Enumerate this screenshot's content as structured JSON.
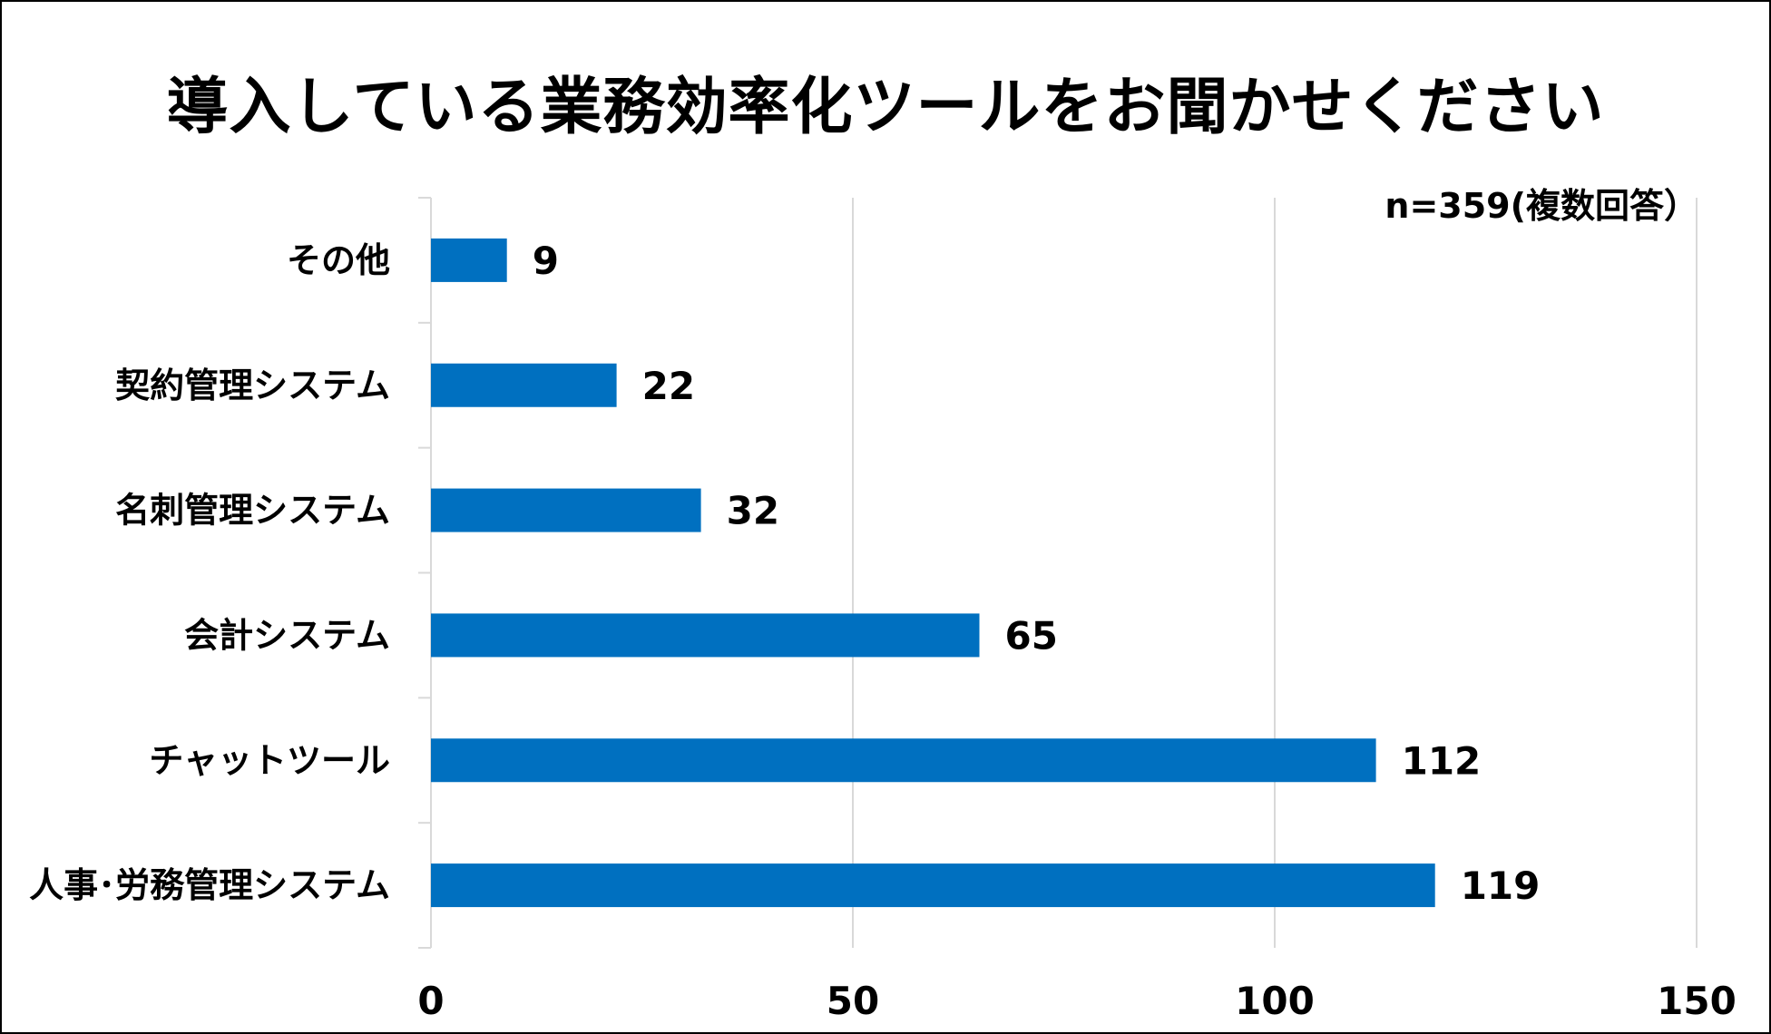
{
  "chart_data": {
    "type": "bar",
    "orientation": "horizontal",
    "title": "導入している業務効率化ツールをお聞かせください",
    "note": "n=359(複数回答）",
    "categories": [
      "その他",
      "契約管理システム",
      "名刺管理システム",
      "会計システム",
      "チャットツール",
      "人事･労務管理システム"
    ],
    "values": [
      9,
      22,
      32,
      65,
      112,
      119
    ],
    "xlim": [
      0,
      150
    ],
    "xticks": [
      0,
      50,
      100,
      150
    ],
    "grid": true,
    "bar_color": "#0070C0",
    "grid_color": "#D9D9D9"
  }
}
